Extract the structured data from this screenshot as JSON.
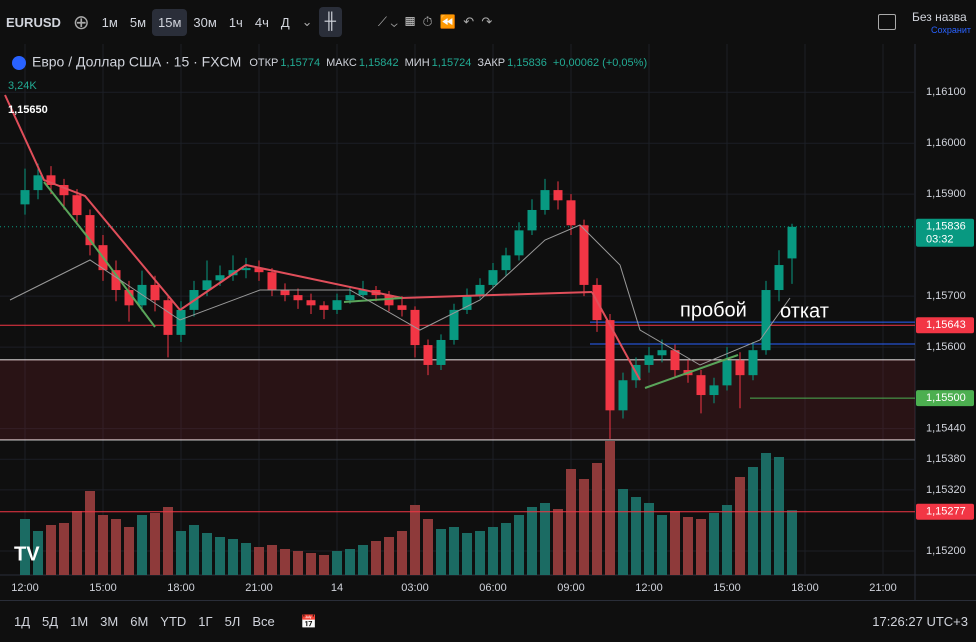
{
  "header": {
    "symbol": "EURUSD",
    "intervals": [
      "1м",
      "5м",
      "15м",
      "30м",
      "1ч",
      "4ч",
      "Д"
    ],
    "layout_name": "Без назва",
    "save": "Сохранит"
  },
  "legend": {
    "title": "Евро / Доллар США · 15 · FXCM",
    "open_label": "ОТКР",
    "open": "1,15774",
    "high_label": "МАКС",
    "high": "1,15842",
    "low_label": "МИН",
    "low": "1,15724",
    "close_label": "ЗАКР",
    "close": "1,15836",
    "change": "+0,00062 (+0,05%)",
    "volume": "3,24K",
    "marker": "1,15650"
  },
  "annotations": [
    "пробой",
    "откат"
  ],
  "footer": {
    "ranges": [
      "1Д",
      "5Д",
      "1М",
      "3М",
      "6М",
      "YTD",
      "1Г",
      "5Л",
      "Все"
    ],
    "clock": "17:26:27 UTC+3"
  },
  "chart_data": {
    "type": "candlestick",
    "up_color": "#089981",
    "down_color": "#f23645",
    "time_labels": [
      "12:00",
      "15:00",
      "18:00",
      "21:00",
      "14",
      "03:00",
      "06:00",
      "09:00",
      "12:00",
      "15:00",
      "18:00",
      "21:00"
    ],
    "ohlc": [
      [
        1.1588,
        1.1595,
        1.1586,
        1.15908
      ],
      [
        1.15908,
        1.1596,
        1.1589,
        1.15937
      ],
      [
        1.15937,
        1.15955,
        1.159,
        1.15918
      ],
      [
        1.15918,
        1.1593,
        1.1587,
        1.15898
      ],
      [
        1.15898,
        1.1591,
        1.1584,
        1.15859
      ],
      [
        1.15859,
        1.1587,
        1.1578,
        1.158
      ],
      [
        1.158,
        1.1582,
        1.1573,
        1.15751
      ],
      [
        1.15751,
        1.1577,
        1.1569,
        1.15712
      ],
      [
        1.15712,
        1.1573,
        1.1565,
        1.15682
      ],
      [
        1.15682,
        1.1575,
        1.1567,
        1.15722
      ],
      [
        1.15722,
        1.1574,
        1.1567,
        1.15692
      ],
      [
        1.15692,
        1.157,
        1.1558,
        1.15624
      ],
      [
        1.15624,
        1.1569,
        1.1561,
        1.15673
      ],
      [
        1.15673,
        1.1573,
        1.1566,
        1.15712
      ],
      [
        1.15712,
        1.1577,
        1.157,
        1.15731
      ],
      [
        1.15731,
        1.1576,
        1.1572,
        1.15741
      ],
      [
        1.15741,
        1.1578,
        1.1573,
        1.15751
      ],
      [
        1.15751,
        1.15775,
        1.15735,
        1.15755
      ],
      [
        1.15755,
        1.1577,
        1.1573,
        1.15747
      ],
      [
        1.15747,
        1.15755,
        1.157,
        1.15712
      ],
      [
        1.15712,
        1.15725,
        1.1569,
        1.15702
      ],
      [
        1.15702,
        1.15715,
        1.15675,
        1.15692
      ],
      [
        1.15692,
        1.15705,
        1.15665,
        1.15682
      ],
      [
        1.15682,
        1.1569,
        1.15655,
        1.15673
      ],
      [
        1.15673,
        1.15705,
        1.15665,
        1.15692
      ],
      [
        1.15692,
        1.1572,
        1.15685,
        1.15702
      ],
      [
        1.15702,
        1.1573,
        1.15695,
        1.15712
      ],
      [
        1.15712,
        1.1572,
        1.1569,
        1.15702
      ],
      [
        1.15702,
        1.1571,
        1.1567,
        1.15682
      ],
      [
        1.15682,
        1.157,
        1.1566,
        1.15673
      ],
      [
        1.15673,
        1.1568,
        1.1558,
        1.15604
      ],
      [
        1.15604,
        1.15615,
        1.15545,
        1.15565
      ],
      [
        1.15565,
        1.15625,
        1.15555,
        1.15614
      ],
      [
        1.15614,
        1.15685,
        1.15605,
        1.15673
      ],
      [
        1.15673,
        1.15715,
        1.15665,
        1.15702
      ],
      [
        1.15702,
        1.15735,
        1.15695,
        1.15722
      ],
      [
        1.15722,
        1.15765,
        1.15715,
        1.15751
      ],
      [
        1.15751,
        1.15795,
        1.1574,
        1.1578
      ],
      [
        1.1578,
        1.15845,
        1.1577,
        1.15829
      ],
      [
        1.15829,
        1.1589,
        1.1582,
        1.15869
      ],
      [
        1.15869,
        1.1593,
        1.1586,
        1.15908
      ],
      [
        1.15908,
        1.15925,
        1.1587,
        1.15888
      ],
      [
        1.15888,
        1.159,
        1.1582,
        1.15839
      ],
      [
        1.15839,
        1.1585,
        1.157,
        1.15722
      ],
      [
        1.15722,
        1.15735,
        1.1563,
        1.15653
      ],
      [
        1.15653,
        1.15665,
        1.1542,
        1.15476
      ],
      [
        1.15476,
        1.1555,
        1.1546,
        1.15535
      ],
      [
        1.15535,
        1.1558,
        1.1552,
        1.15565
      ],
      [
        1.15565,
        1.156,
        1.1555,
        1.15584
      ],
      [
        1.15584,
        1.15615,
        1.1557,
        1.15594
      ],
      [
        1.15594,
        1.15605,
        1.1554,
        1.15555
      ],
      [
        1.15555,
        1.15575,
        1.1553,
        1.15545
      ],
      [
        1.15545,
        1.15555,
        1.1547,
        1.15506
      ],
      [
        1.15506,
        1.1554,
        1.1549,
        1.15525
      ],
      [
        1.15525,
        1.156,
        1.15515,
        1.15574
      ],
      [
        1.15574,
        1.1559,
        1.1548,
        1.15545
      ],
      [
        1.15545,
        1.1561,
        1.15535,
        1.15594
      ],
      [
        1.15594,
        1.1573,
        1.15585,
        1.15712
      ],
      [
        1.15712,
        1.1579,
        1.1569,
        1.15761
      ],
      [
        1.15774,
        1.15842,
        1.15724,
        1.15836
      ]
    ],
    "volume": [
      2.8,
      2.2,
      2.5,
      2.6,
      3.2,
      4.2,
      3.0,
      2.8,
      2.4,
      3.0,
      3.1,
      3.4,
      2.2,
      2.5,
      2.1,
      1.9,
      1.8,
      1.6,
      1.4,
      1.5,
      1.3,
      1.2,
      1.1,
      1.0,
      1.2,
      1.3,
      1.5,
      1.7,
      1.9,
      2.2,
      3.5,
      2.8,
      2.3,
      2.4,
      2.1,
      2.2,
      2.4,
      2.6,
      3.0,
      3.4,
      3.6,
      3.3,
      5.3,
      4.8,
      5.6,
      6.7,
      4.3,
      3.9,
      3.6,
      3.0,
      3.2,
      2.9,
      2.8,
      3.1,
      3.5,
      4.9,
      5.4,
      6.1,
      5.9,
      3.24
    ],
    "ylim": [
      1.15153,
      1.16173
    ],
    "yticks": [
      {
        "value": 1.161,
        "label": "1,16100"
      },
      {
        "value": 1.16,
        "label": "1,16000"
      },
      {
        "value": 1.159,
        "label": "1,15900"
      },
      {
        "value": 1.157,
        "label": "1,15700"
      },
      {
        "value": 1.156,
        "label": "1,15600"
      },
      {
        "value": 1.1544,
        "label": "1,15440"
      },
      {
        "value": 1.1538,
        "label": "1,15380"
      },
      {
        "value": 1.1532,
        "label": "1,15320"
      },
      {
        "value": 1.152,
        "label": "1,15200"
      }
    ],
    "levels": [
      {
        "value": 1.15649,
        "color": "#2962ff"
      },
      {
        "value": 1.15606,
        "color": "#2962ff"
      },
      {
        "value": 1.15575,
        "color": "#ffffff"
      },
      {
        "value": 1.15418,
        "color": "#ffffff"
      }
    ],
    "price_labels": [
      {
        "value": 1.15836,
        "label": "1,15836",
        "sub": "03:32",
        "color": "#089981"
      },
      {
        "value": 1.15643,
        "label": "1,15643",
        "color": "#f23645"
      },
      {
        "value": 1.155,
        "label": "1,15500",
        "color": "#4caf50"
      },
      {
        "value": 1.15277,
        "label": "1,15277",
        "color": "#f23645"
      }
    ]
  }
}
